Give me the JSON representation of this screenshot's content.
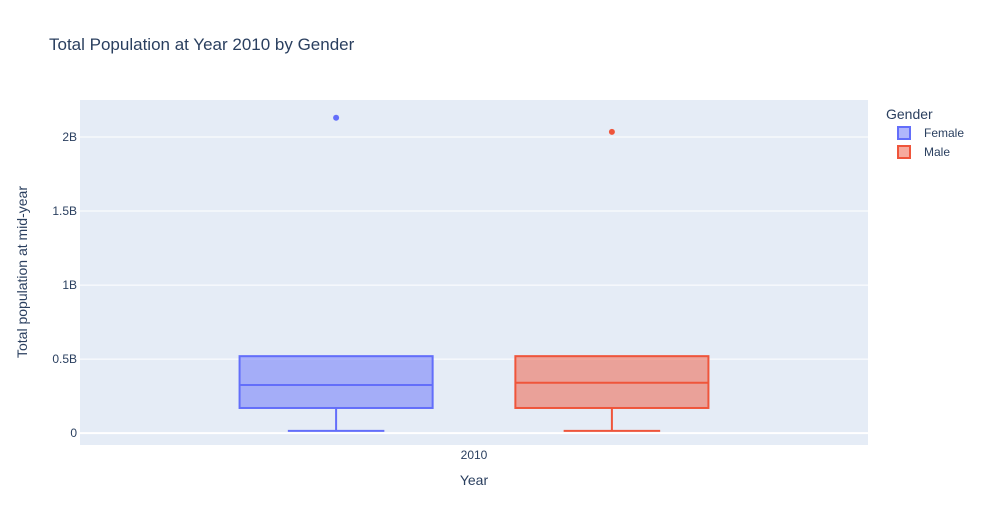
{
  "chart_data": {
    "type": "box",
    "title": "Total Population at Year 2010 by Gender",
    "xlabel": "Year",
    "ylabel": "Total population at mid-year",
    "categories": [
      "2010"
    ],
    "ylim": [
      -0.08,
      2.25
    ],
    "y_unit": "billions",
    "yticks": [
      {
        "value": 0,
        "label": "0"
      },
      {
        "value": 0.5,
        "label": "0.5B"
      },
      {
        "value": 1,
        "label": "1B"
      },
      {
        "value": 1.5,
        "label": "1.5B"
      },
      {
        "value": 2,
        "label": "2B"
      }
    ],
    "grid": true,
    "legend": {
      "title": "Gender",
      "placement": "top-right outside plot"
    },
    "series": [
      {
        "name": "Female",
        "color": "#636efa",
        "fill": "rgba(99,110,250,0.5)",
        "min": 0.015,
        "q1": 0.17,
        "median": 0.325,
        "q3": 0.52,
        "max": 0.52,
        "outliers": [
          2.13
        ]
      },
      {
        "name": "Male",
        "color": "#ef553b",
        "fill": "rgba(239,85,59,0.5)",
        "min": 0.015,
        "q1": 0.17,
        "median": 0.34,
        "q3": 0.52,
        "max": 0.52,
        "outliers": [
          2.035
        ]
      }
    ]
  }
}
